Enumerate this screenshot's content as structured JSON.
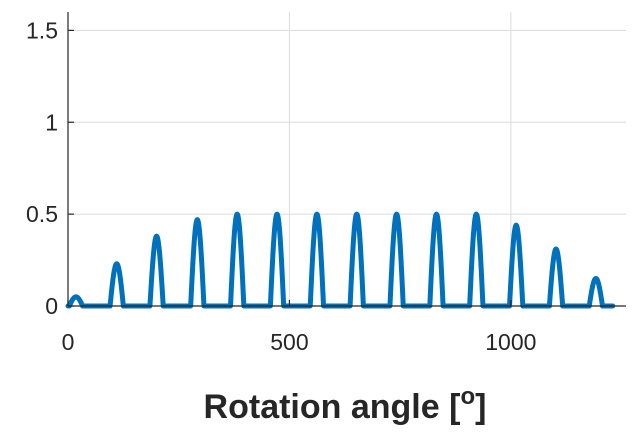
{
  "chart_data": {
    "type": "line",
    "xlabel_main": "Rotation angle [",
    "xlabel_sup": "o",
    "xlabel_end": "]",
    "ylabel": "",
    "xlim": [
      0,
      1260
    ],
    "ylim": [
      0,
      1.6
    ],
    "xticks": [
      0,
      500,
      1000
    ],
    "xtick_labels": [
      "0",
      "500",
      "1000"
    ],
    "yticks": [
      0,
      0.5,
      1,
      1.5
    ],
    "ytick_labels": [
      "0",
      "0.5",
      "1",
      "1.5"
    ],
    "grid": true,
    "line_color": "#0072BD",
    "series": [
      {
        "pulse_width_deg": 30,
        "pulses": [
          {
            "center": 18,
            "peak": 0.05
          },
          {
            "center": 110,
            "peak": 0.23
          },
          {
            "center": 200,
            "peak": 0.38
          },
          {
            "center": 292,
            "peak": 0.47
          },
          {
            "center": 382,
            "peak": 0.5
          },
          {
            "center": 472,
            "peak": 0.5
          },
          {
            "center": 562,
            "peak": 0.5
          },
          {
            "center": 652,
            "peak": 0.5
          },
          {
            "center": 742,
            "peak": 0.5
          },
          {
            "center": 832,
            "peak": 0.5
          },
          {
            "center": 922,
            "peak": 0.5
          },
          {
            "center": 1012,
            "peak": 0.44
          },
          {
            "center": 1102,
            "peak": 0.31
          },
          {
            "center": 1192,
            "peak": 0.15
          }
        ]
      }
    ]
  }
}
